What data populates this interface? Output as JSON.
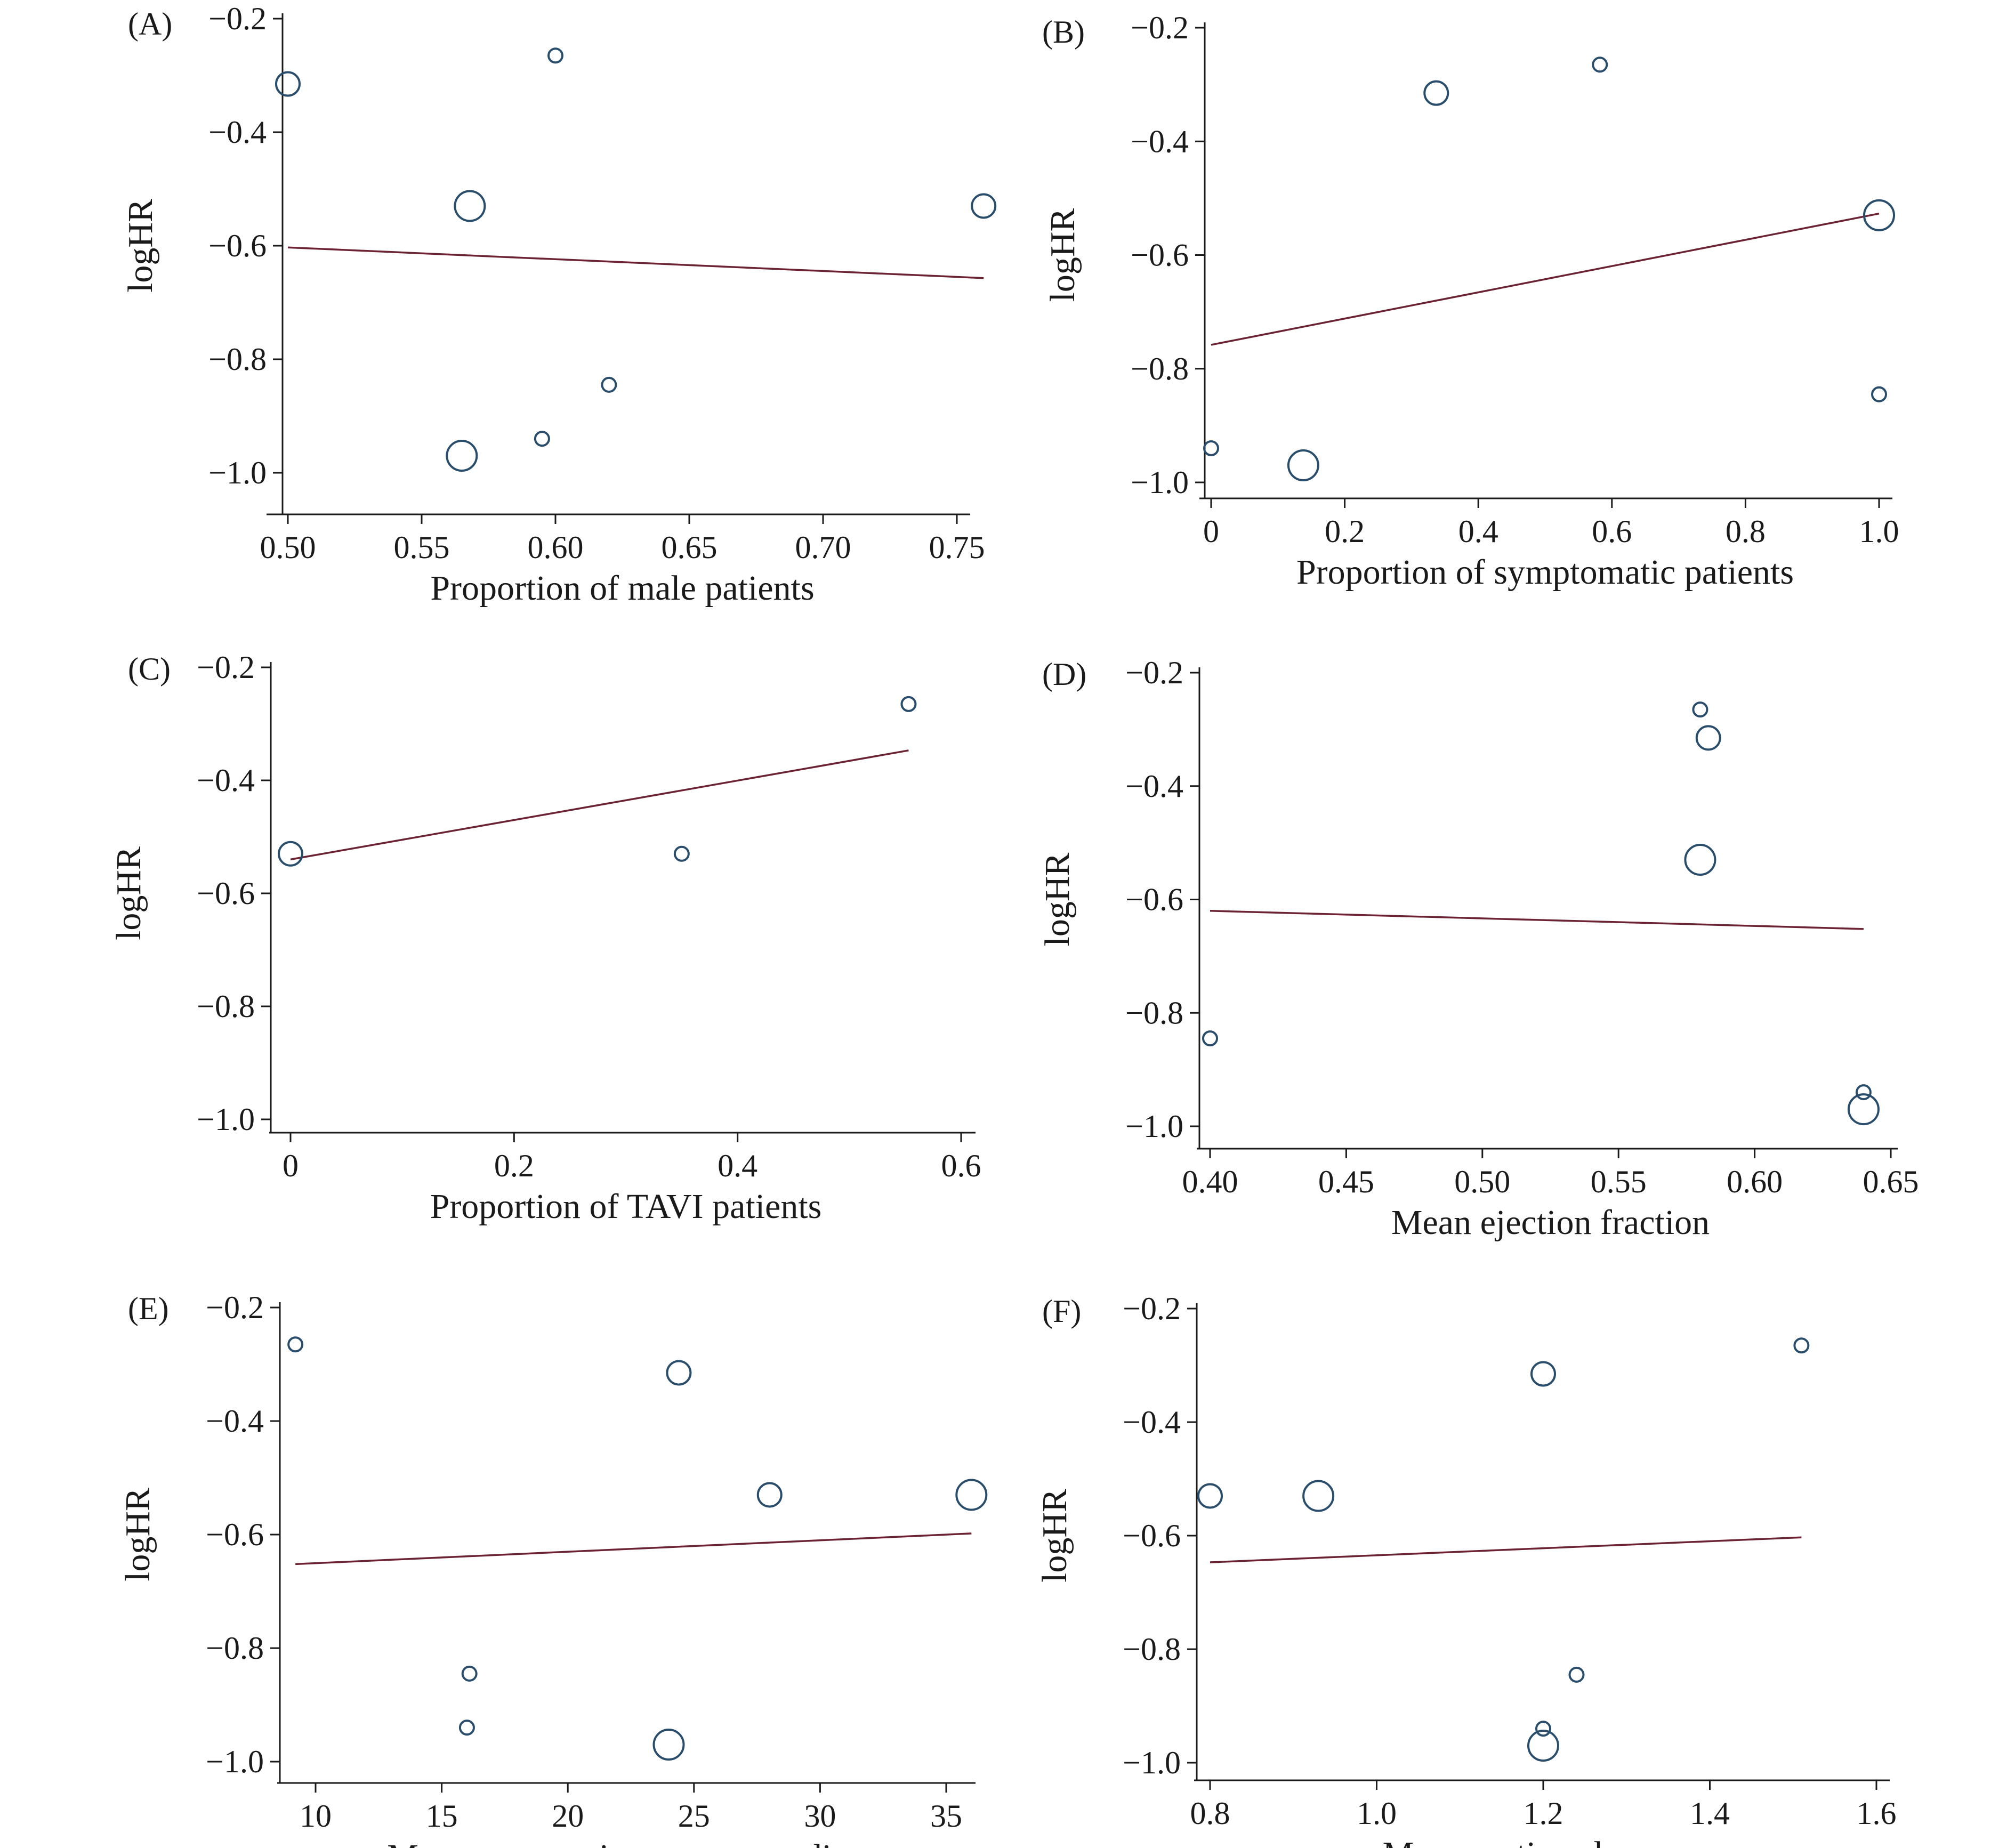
{
  "chart_data": [
    {
      "panel": "(A)",
      "type": "scatter",
      "xlabel": "Proportion of male patients",
      "ylabel": "logHR",
      "xlim": [
        0.5,
        0.76
      ],
      "ylim": [
        -1.0,
        -0.2
      ],
      "xticks": [
        "0.50",
        "0.55",
        "0.60",
        "0.65",
        "0.70",
        "0.75"
      ],
      "xtick_values": [
        0.5,
        0.55,
        0.6,
        0.65,
        0.7,
        0.75
      ],
      "yticks": [
        "−0.2",
        "−0.4",
        "−0.6",
        "−0.8",
        "−1.0"
      ],
      "ytick_values": [
        -0.2,
        -0.4,
        -0.6,
        -0.8,
        -1.0
      ],
      "points": [
        {
          "x": 0.5,
          "y": -0.315,
          "weight": 2
        },
        {
          "x": 0.6,
          "y": -0.265,
          "weight": 1
        },
        {
          "x": 0.568,
          "y": -0.53,
          "weight": 3
        },
        {
          "x": 0.76,
          "y": -0.53,
          "weight": 2
        },
        {
          "x": 0.62,
          "y": -0.845,
          "weight": 1
        },
        {
          "x": 0.595,
          "y": -0.94,
          "weight": 1
        },
        {
          "x": 0.565,
          "y": -0.97,
          "weight": 3
        }
      ],
      "fit_line": {
        "x": [
          0.5,
          0.76
        ],
        "y": [
          -0.603,
          -0.657
        ]
      }
    },
    {
      "panel": "(B)",
      "type": "scatter",
      "xlabel": "Proportion of symptomatic patients",
      "ylabel": "logHR",
      "xlim": [
        0.0,
        1.0
      ],
      "ylim": [
        -1.0,
        -0.2
      ],
      "xticks": [
        "0",
        "0.2",
        "0.4",
        "0.6",
        "0.8",
        "1.0"
      ],
      "xtick_values": [
        0.0,
        0.2,
        0.4,
        0.6,
        0.8,
        1.0
      ],
      "yticks": [
        "−0.2",
        "−0.4",
        "−0.6",
        "−0.8",
        "−1.0"
      ],
      "ytick_values": [
        -0.2,
        -0.4,
        -0.6,
        -0.8,
        -1.0
      ],
      "points": [
        {
          "x": 0.337,
          "y": -0.315,
          "weight": 2
        },
        {
          "x": 0.582,
          "y": -0.265,
          "weight": 1
        },
        {
          "x": 1.0,
          "y": -0.53,
          "weight": 3
        },
        {
          "x": 1.0,
          "y": -0.845,
          "weight": 1
        },
        {
          "x": 0.0,
          "y": -0.94,
          "weight": 1
        },
        {
          "x": 0.138,
          "y": -0.97,
          "weight": 3
        }
      ],
      "fit_line": {
        "x": [
          0.0,
          1.0
        ],
        "y": [
          -0.758,
          -0.527
        ]
      }
    },
    {
      "panel": "(C)",
      "type": "scatter",
      "xlabel": "Proportion of TAVI patients",
      "ylabel": "logHR",
      "xlim": [
        0.0,
        0.6
      ],
      "ylim": [
        -1.0,
        -0.2
      ],
      "xticks": [
        "0",
        "0.2",
        "0.4",
        "0.6"
      ],
      "xtick_values": [
        0.0,
        0.2,
        0.4,
        0.6
      ],
      "yticks": [
        "−0.2",
        "−0.4",
        "−0.6",
        "−0.8",
        "−1.0"
      ],
      "ytick_values": [
        -0.2,
        -0.4,
        -0.6,
        -0.8,
        -1.0
      ],
      "points": [
        {
          "x": 0.553,
          "y": -0.265,
          "weight": 1
        },
        {
          "x": 0.0,
          "y": -0.53,
          "weight": 2
        },
        {
          "x": 0.35,
          "y": -0.53,
          "weight": 1
        }
      ],
      "fit_line": {
        "x": [
          0.0,
          0.553
        ],
        "y": [
          -0.54,
          -0.347
        ]
      }
    },
    {
      "panel": "(D)",
      "type": "scatter",
      "xlabel": "Mean ejection fraction",
      "ylabel": "logHR",
      "xlim": [
        0.4,
        0.65
      ],
      "ylim": [
        -1.0,
        -0.2
      ],
      "xticks": [
        "0.40",
        "0.45",
        "0.50",
        "0.55",
        "0.60",
        "0.65"
      ],
      "xtick_values": [
        0.4,
        0.45,
        0.5,
        0.55,
        0.6,
        0.65
      ],
      "yticks": [
        "−0.2",
        "−0.4",
        "−0.6",
        "−0.8",
        "−1.0"
      ],
      "ytick_values": [
        -0.2,
        -0.4,
        -0.6,
        -0.8,
        -1.0
      ],
      "points": [
        {
          "x": 0.58,
          "y": -0.265,
          "weight": 1
        },
        {
          "x": 0.583,
          "y": -0.315,
          "weight": 2
        },
        {
          "x": 0.58,
          "y": -0.53,
          "weight": 3
        },
        {
          "x": 0.4,
          "y": -0.845,
          "weight": 1
        },
        {
          "x": 0.64,
          "y": -0.94,
          "weight": 1
        },
        {
          "x": 0.64,
          "y": -0.97,
          "weight": 3
        }
      ],
      "fit_line": {
        "x": [
          0.4,
          0.64
        ],
        "y": [
          -0.62,
          -0.652
        ]
      }
    },
    {
      "panel": "(E)",
      "type": "scatter",
      "xlabel": "Mean transaortic pressure gradient",
      "ylabel": "logHR",
      "xlim": [
        9,
        36
      ],
      "ylim": [
        -1.0,
        -0.2
      ],
      "xticks": [
        "10",
        "15",
        "20",
        "25",
        "30",
        "35"
      ],
      "xtick_values": [
        10,
        15,
        20,
        25,
        30,
        35
      ],
      "yticks": [
        "−0.2",
        "−0.4",
        "−0.6",
        "−0.8",
        "−1.0"
      ],
      "ytick_values": [
        -0.2,
        -0.4,
        -0.6,
        -0.8,
        -1.0
      ],
      "points": [
        {
          "x": 9.2,
          "y": -0.265,
          "weight": 1
        },
        {
          "x": 24.4,
          "y": -0.315,
          "weight": 2
        },
        {
          "x": 28.0,
          "y": -0.53,
          "weight": 2
        },
        {
          "x": 36.0,
          "y": -0.53,
          "weight": 3
        },
        {
          "x": 16.1,
          "y": -0.845,
          "weight": 1
        },
        {
          "x": 16.0,
          "y": -0.94,
          "weight": 1
        },
        {
          "x": 24.0,
          "y": -0.97,
          "weight": 3
        }
      ],
      "fit_line": {
        "x": [
          9.2,
          36.0
        ],
        "y": [
          -0.652,
          -0.598
        ]
      }
    },
    {
      "panel": "(F)",
      "type": "scatter",
      "xlabel": "Mean aortic valve area",
      "ylabel": "logHR",
      "xlim": [
        0.8,
        1.6
      ],
      "ylim": [
        -1.0,
        -0.2
      ],
      "xticks": [
        "0.8",
        "1.0",
        "1.2",
        "1.4",
        "1.6"
      ],
      "xtick_values": [
        0.8,
        1.0,
        1.2,
        1.4,
        1.6
      ],
      "yticks": [
        "−0.2",
        "−0.4",
        "−0.6",
        "−0.8",
        "−1.0"
      ],
      "ytick_values": [
        -0.2,
        -0.4,
        -0.6,
        -0.8,
        -1.0
      ],
      "points": [
        {
          "x": 1.51,
          "y": -0.265,
          "weight": 1
        },
        {
          "x": 1.2,
          "y": -0.315,
          "weight": 2
        },
        {
          "x": 0.8,
          "y": -0.53,
          "weight": 2
        },
        {
          "x": 0.93,
          "y": -0.53,
          "weight": 3
        },
        {
          "x": 1.24,
          "y": -0.845,
          "weight": 1
        },
        {
          "x": 1.2,
          "y": -0.94,
          "weight": 1
        },
        {
          "x": 1.2,
          "y": -0.97,
          "weight": 3
        }
      ],
      "fit_line": {
        "x": [
          0.8,
          1.51
        ],
        "y": [
          -0.647,
          -0.603
        ]
      }
    }
  ]
}
